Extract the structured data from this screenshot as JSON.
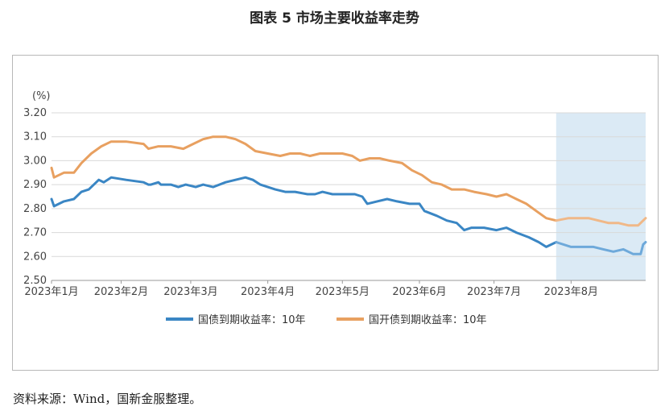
{
  "figure": {
    "title": "图表 5  市场主要收益率走势",
    "source": "资料来源：Wind，国新金服整理。"
  },
  "colors": {
    "series_1": "#3a86c4",
    "series_1_highlight": "#6ea9da",
    "series_2": "#e8a060",
    "series_2_highlight": "#f0b888",
    "shade": "#dbeaf5",
    "grid": "#d9d9d9"
  },
  "chart_data": {
    "type": "line",
    "ylabel": "(%)",
    "ylim": [
      2.5,
      3.2
    ],
    "yticks": [
      "3.20",
      "3.10",
      "3.00",
      "2.90",
      "2.80",
      "2.70",
      "2.60",
      "2.50"
    ],
    "ytick_values": [
      3.2,
      3.1,
      3.0,
      2.9,
      2.8,
      2.7,
      2.6,
      2.5
    ],
    "xlim": [
      "2023-01-04",
      "2023-08-31"
    ],
    "xticks": [
      "2023年1月",
      "2023年2月",
      "2023年3月",
      "2023年4月",
      "2023年5月",
      "2023年6月",
      "2023年7月",
      "2023年8月"
    ],
    "xtick_dates": [
      "2023-01-01",
      "2023-02-01",
      "2023-03-01",
      "2023-04-01",
      "2023-05-01",
      "2023-06-01",
      "2023-07-01",
      "2023-08-01"
    ],
    "grid": true,
    "legend_position": "bottom",
    "shaded_range": [
      "2023-07-26",
      "2023-08-31"
    ],
    "series": [
      {
        "name": "国债到期收益率：10年",
        "points": [
          [
            "2023-01-04",
            2.84
          ],
          [
            "2023-01-05",
            2.81
          ],
          [
            "2023-01-09",
            2.83
          ],
          [
            "2023-01-13",
            2.84
          ],
          [
            "2023-01-16",
            2.87
          ],
          [
            "2023-01-19",
            2.88
          ],
          [
            "2023-01-23",
            2.92
          ],
          [
            "2023-01-25",
            2.91
          ],
          [
            "2023-01-28",
            2.93
          ],
          [
            "2023-02-03",
            2.92
          ],
          [
            "2023-02-10",
            2.91
          ],
          [
            "2023-02-12",
            2.9
          ],
          [
            "2023-02-13",
            2.9
          ],
          [
            "2023-02-16",
            2.91
          ],
          [
            "2023-02-17",
            2.9
          ],
          [
            "2023-02-21",
            2.9
          ],
          [
            "2023-02-24",
            2.89
          ],
          [
            "2023-02-27",
            2.9
          ],
          [
            "2023-03-03",
            2.89
          ],
          [
            "2023-03-06",
            2.9
          ],
          [
            "2023-03-10",
            2.89
          ],
          [
            "2023-03-15",
            2.91
          ],
          [
            "2023-03-19",
            2.92
          ],
          [
            "2023-03-23",
            2.93
          ],
          [
            "2023-03-26",
            2.92
          ],
          [
            "2023-03-29",
            2.9
          ],
          [
            "2023-04-04",
            2.88
          ],
          [
            "2023-04-08",
            2.87
          ],
          [
            "2023-04-12",
            2.87
          ],
          [
            "2023-04-17",
            2.86
          ],
          [
            "2023-04-20",
            2.86
          ],
          [
            "2023-04-23",
            2.87
          ],
          [
            "2023-04-27",
            2.86
          ],
          [
            "2023-05-02",
            2.86
          ],
          [
            "2023-05-06",
            2.86
          ],
          [
            "2023-05-09",
            2.85
          ],
          [
            "2023-05-11",
            2.82
          ],
          [
            "2023-05-15",
            2.83
          ],
          [
            "2023-05-19",
            2.84
          ],
          [
            "2023-05-23",
            2.83
          ],
          [
            "2023-05-28",
            2.82
          ],
          [
            "2023-06-01",
            2.82
          ],
          [
            "2023-06-03",
            2.79
          ],
          [
            "2023-06-08",
            2.77
          ],
          [
            "2023-06-12",
            2.75
          ],
          [
            "2023-06-16",
            2.74
          ],
          [
            "2023-06-19",
            2.71
          ],
          [
            "2023-06-22",
            2.72
          ],
          [
            "2023-06-27",
            2.72
          ],
          [
            "2023-07-02",
            2.71
          ],
          [
            "2023-07-06",
            2.72
          ],
          [
            "2023-07-10",
            2.7
          ],
          [
            "2023-07-15",
            2.68
          ],
          [
            "2023-07-19",
            2.66
          ],
          [
            "2023-07-22",
            2.64
          ],
          [
            "2023-07-26",
            2.66
          ],
          [
            "2023-08-01",
            2.64
          ],
          [
            "2023-08-06",
            2.64
          ],
          [
            "2023-08-10",
            2.64
          ],
          [
            "2023-08-14",
            2.63
          ],
          [
            "2023-08-18",
            2.62
          ],
          [
            "2023-08-22",
            2.63
          ],
          [
            "2023-08-26",
            2.61
          ],
          [
            "2023-08-29",
            2.61
          ],
          [
            "2023-08-30",
            2.65
          ],
          [
            "2023-08-31",
            2.66
          ]
        ]
      },
      {
        "name": "国开债到期收益率：10年",
        "points": [
          [
            "2023-01-04",
            2.97
          ],
          [
            "2023-01-05",
            2.93
          ],
          [
            "2023-01-09",
            2.95
          ],
          [
            "2023-01-13",
            2.95
          ],
          [
            "2023-01-16",
            2.99
          ],
          [
            "2023-01-20",
            3.03
          ],
          [
            "2023-01-24",
            3.06
          ],
          [
            "2023-01-28",
            3.08
          ],
          [
            "2023-02-03",
            3.08
          ],
          [
            "2023-02-10",
            3.07
          ],
          [
            "2023-02-12",
            3.05
          ],
          [
            "2023-02-16",
            3.06
          ],
          [
            "2023-02-21",
            3.06
          ],
          [
            "2023-02-26",
            3.05
          ],
          [
            "2023-03-02",
            3.07
          ],
          [
            "2023-03-06",
            3.09
          ],
          [
            "2023-03-10",
            3.1
          ],
          [
            "2023-03-15",
            3.1
          ],
          [
            "2023-03-19",
            3.09
          ],
          [
            "2023-03-23",
            3.07
          ],
          [
            "2023-03-27",
            3.04
          ],
          [
            "2023-04-01",
            3.03
          ],
          [
            "2023-04-06",
            3.02
          ],
          [
            "2023-04-10",
            3.03
          ],
          [
            "2023-04-14",
            3.03
          ],
          [
            "2023-04-18",
            3.02
          ],
          [
            "2023-04-22",
            3.03
          ],
          [
            "2023-04-27",
            3.03
          ],
          [
            "2023-05-01",
            3.03
          ],
          [
            "2023-05-05",
            3.02
          ],
          [
            "2023-05-08",
            3.0
          ],
          [
            "2023-05-12",
            3.01
          ],
          [
            "2023-05-16",
            3.01
          ],
          [
            "2023-05-20",
            3.0
          ],
          [
            "2023-05-25",
            2.99
          ],
          [
            "2023-05-29",
            2.96
          ],
          [
            "2023-06-02",
            2.94
          ],
          [
            "2023-06-06",
            2.91
          ],
          [
            "2023-06-10",
            2.9
          ],
          [
            "2023-06-14",
            2.88
          ],
          [
            "2023-06-19",
            2.88
          ],
          [
            "2023-06-23",
            2.87
          ],
          [
            "2023-06-28",
            2.86
          ],
          [
            "2023-07-02",
            2.85
          ],
          [
            "2023-07-06",
            2.86
          ],
          [
            "2023-07-10",
            2.84
          ],
          [
            "2023-07-14",
            2.82
          ],
          [
            "2023-07-18",
            2.79
          ],
          [
            "2023-07-22",
            2.76
          ],
          [
            "2023-07-26",
            2.75
          ],
          [
            "2023-07-31",
            2.76
          ],
          [
            "2023-08-04",
            2.76
          ],
          [
            "2023-08-08",
            2.76
          ],
          [
            "2023-08-12",
            2.75
          ],
          [
            "2023-08-16",
            2.74
          ],
          [
            "2023-08-20",
            2.74
          ],
          [
            "2023-08-24",
            2.73
          ],
          [
            "2023-08-28",
            2.73
          ],
          [
            "2023-08-30",
            2.75
          ],
          [
            "2023-08-31",
            2.76
          ]
        ]
      }
    ]
  }
}
